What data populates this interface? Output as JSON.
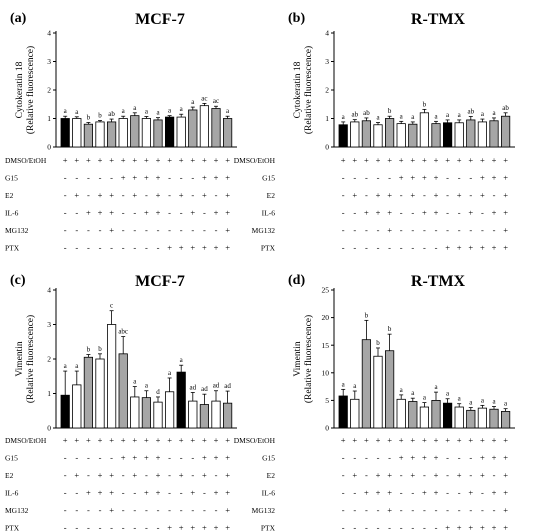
{
  "chart_data": [
    {
      "type": "bar",
      "panel_label": "(a)",
      "title": "MCF-7",
      "ylabel": "Cytokeratin 18",
      "ylabel2": "(Relative fluorescence)",
      "ylim": [
        0,
        4
      ],
      "yticks": [
        "0",
        "1",
        "2",
        "3",
        "4"
      ],
      "values": [
        1.0,
        1.0,
        0.8,
        0.88,
        0.88,
        1.0,
        1.1,
        1.0,
        0.95,
        1.05,
        1.05,
        1.3,
        1.45,
        1.35,
        1.0
      ],
      "errors": [
        0.08,
        0.06,
        0.06,
        0.05,
        0.1,
        0.08,
        0.1,
        0.07,
        0.08,
        0.05,
        0.1,
        0.1,
        0.08,
        0.08,
        0.08
      ],
      "labels": [
        "a",
        "a",
        "b",
        "b",
        "ab",
        "a",
        "a",
        "a",
        "a",
        "a",
        "a",
        "a",
        "ac",
        "ac",
        "a"
      ],
      "fills": [
        "#000000",
        "#ffffff",
        "#a6a6a6",
        "#ffffff",
        "#a6a6a6",
        "#ffffff",
        "#a6a6a6",
        "#ffffff",
        "#a6a6a6",
        "#000000",
        "#ffffff",
        "#a6a6a6",
        "#ffffff",
        "#a6a6a6",
        "#a6a6a6"
      ]
    },
    {
      "type": "bar",
      "panel_label": "(b)",
      "title": "R-TMX",
      "ylabel": "Cytokeratin 18",
      "ylabel2": "(Relative fluorescence)",
      "ylim": [
        0,
        4
      ],
      "yticks": [
        "0",
        "1",
        "2",
        "3",
        "4"
      ],
      "values": [
        0.78,
        0.88,
        0.92,
        0.78,
        1.0,
        0.82,
        0.8,
        1.2,
        0.82,
        0.85,
        0.85,
        0.95,
        0.88,
        0.92,
        1.08
      ],
      "errors": [
        0.1,
        0.08,
        0.1,
        0.08,
        0.08,
        0.08,
        0.08,
        0.12,
        0.08,
        0.1,
        0.1,
        0.12,
        0.1,
        0.1,
        0.12
      ],
      "labels": [
        "a",
        "ab",
        "ab",
        "a",
        "b",
        "a",
        "a",
        "b",
        "a",
        "a",
        "a",
        "ab",
        "a",
        "a",
        "ab"
      ],
      "fills": [
        "#000000",
        "#ffffff",
        "#a6a6a6",
        "#ffffff",
        "#a6a6a6",
        "#ffffff",
        "#a6a6a6",
        "#ffffff",
        "#a6a6a6",
        "#000000",
        "#ffffff",
        "#a6a6a6",
        "#ffffff",
        "#a6a6a6",
        "#a6a6a6"
      ]
    },
    {
      "type": "bar",
      "panel_label": "(c)",
      "title": "MCF-7",
      "ylabel": "Vimentin",
      "ylabel2": "(Relative fluorescence)",
      "ylim": [
        0,
        4
      ],
      "yticks": [
        "0",
        "1",
        "2",
        "3",
        "4"
      ],
      "values": [
        0.95,
        1.25,
        2.05,
        2.0,
        3.0,
        2.15,
        0.9,
        0.88,
        0.75,
        1.05,
        1.62,
        0.78,
        0.68,
        0.78,
        0.72
      ],
      "errors": [
        0.7,
        0.4,
        0.08,
        0.15,
        0.4,
        0.5,
        0.3,
        0.2,
        0.15,
        0.4,
        0.2,
        0.25,
        0.3,
        0.3,
        0.35
      ],
      "labels": [
        "a",
        "a",
        "b",
        "b",
        "c",
        "abc",
        "a",
        "a",
        "d",
        "a",
        "a",
        "ad",
        "ad",
        "ad",
        "ad"
      ],
      "fills": [
        "#000000",
        "#ffffff",
        "#a6a6a6",
        "#ffffff",
        "#ffffff",
        "#a6a6a6",
        "#ffffff",
        "#a6a6a6",
        "#ffffff",
        "#ffffff",
        "#000000",
        "#ffffff",
        "#a6a6a6",
        "#ffffff",
        "#a6a6a6"
      ]
    },
    {
      "type": "bar",
      "panel_label": "(d)",
      "title": "R-TMX",
      "ylabel": "Vimentin",
      "ylabel2": "(Relative fluorescence)",
      "ylim": [
        0,
        25
      ],
      "yticks": [
        "0",
        "5",
        "10",
        "15",
        "20",
        "25"
      ],
      "values": [
        5.8,
        5.2,
        16.0,
        13.0,
        14.0,
        5.2,
        4.8,
        3.8,
        5.0,
        4.5,
        3.8,
        3.2,
        3.6,
        3.4,
        3.0
      ],
      "errors": [
        1.2,
        1.5,
        3.5,
        1.5,
        3.0,
        0.8,
        0.6,
        0.8,
        1.5,
        0.8,
        0.6,
        0.5,
        0.5,
        0.5,
        0.5
      ],
      "labels": [
        "a",
        "a",
        "b",
        "b",
        "b",
        "a",
        "a",
        "a",
        "a",
        "a",
        "a",
        "a",
        "a",
        "a",
        "a"
      ],
      "fills": [
        "#000000",
        "#ffffff",
        "#a6a6a6",
        "#ffffff",
        "#a6a6a6",
        "#ffffff",
        "#a6a6a6",
        "#ffffff",
        "#a6a6a6",
        "#000000",
        "#ffffff",
        "#a6a6a6",
        "#ffffff",
        "#a6a6a6",
        "#a6a6a6"
      ]
    }
  ],
  "treatment_table": {
    "rows": [
      {
        "label": "DMSO/EtOH",
        "signs": [
          "+",
          "+",
          "+",
          "+",
          "+",
          "+",
          "+",
          "+",
          "+",
          "+",
          "+",
          "+",
          "+",
          "+",
          "+"
        ]
      },
      {
        "label": "G15",
        "signs": [
          "-",
          "-",
          "-",
          "-",
          "-",
          "+",
          "+",
          "+",
          "+",
          "-",
          "-",
          "-",
          "+",
          "+",
          "+"
        ]
      },
      {
        "label": "E2",
        "signs": [
          "-",
          "+",
          "-",
          "+",
          "+",
          "-",
          "+",
          "-",
          "+",
          "-",
          "+",
          "-",
          "+",
          "-",
          "+"
        ]
      },
      {
        "label": "IL-6",
        "signs": [
          "-",
          "-",
          "+",
          "+",
          "+",
          "-",
          "-",
          "+",
          "+",
          "-",
          "-",
          "+",
          "-",
          "+",
          "+"
        ]
      },
      {
        "label": "MG132",
        "signs": [
          "-",
          "-",
          "-",
          "-",
          "+",
          "-",
          "-",
          "-",
          "-",
          "-",
          "-",
          "-",
          "-",
          "-",
          "+"
        ]
      },
      {
        "label": "PTX",
        "signs": [
          "-",
          "-",
          "-",
          "-",
          "-",
          "-",
          "-",
          "-",
          "-",
          "+",
          "+",
          "+",
          "+",
          "+",
          "+"
        ]
      }
    ]
  }
}
